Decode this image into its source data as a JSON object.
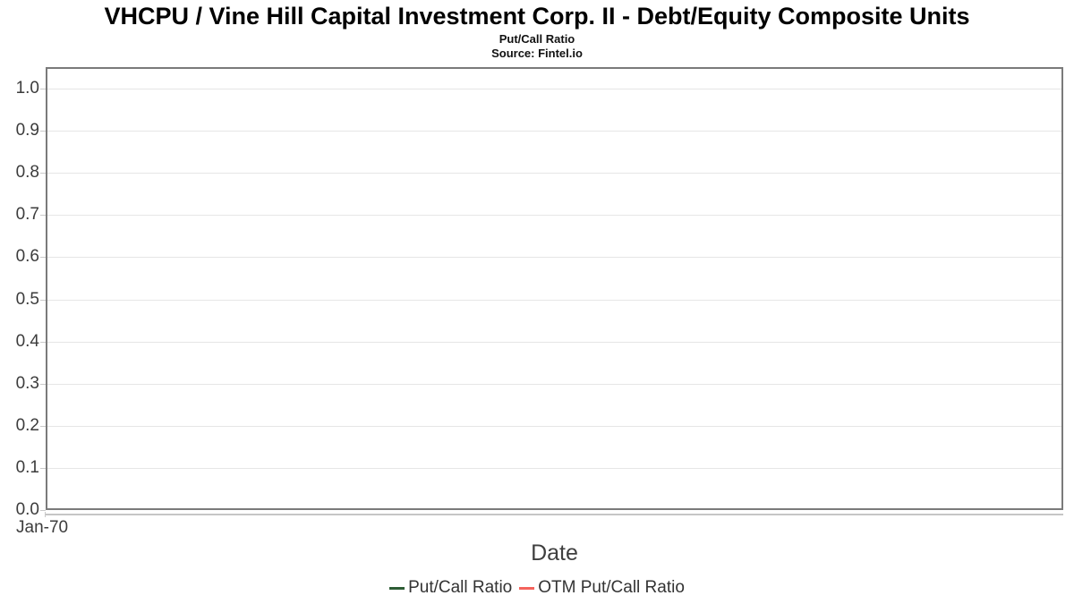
{
  "header": {
    "title": "VHCPU / Vine Hill Capital Investment Corp. II - Debt/Equity Composite Units",
    "subtitle": "Put/Call Ratio",
    "source": "Source: Fintel.io"
  },
  "chart_data": {
    "type": "line",
    "title": "VHCPU / Vine Hill Capital Investment Corp. II - Debt/Equity Composite Units",
    "subtitle": "Put/Call Ratio",
    "source": "Source: Fintel.io",
    "xlabel": "Date",
    "ylabel": "",
    "x_tick_labels": [
      "Jan-70"
    ],
    "y_tick_labels": [
      "0.0",
      "0.1",
      "0.2",
      "0.3",
      "0.4",
      "0.5",
      "0.6",
      "0.7",
      "0.8",
      "0.9",
      "1.0"
    ],
    "ylim": [
      0.0,
      1.05
    ],
    "grid": "horizontal",
    "legend_position": "bottom-center",
    "series": [
      {
        "name": "Put/Call Ratio",
        "color": "#2d5c34",
        "x": [],
        "values": []
      },
      {
        "name": "OTM Put/Call Ratio",
        "color": "#f4635c",
        "x": [],
        "values": []
      }
    ]
  },
  "colors": {
    "background": "#ffffff",
    "plot_border": "#7a7a7a",
    "gridline": "#e6e6e6",
    "tick_mark": "#c9c9c9",
    "secondary_axis_line": "#c6c6c6",
    "title_text": "#000000",
    "tick_label_text": "#3c3c3c",
    "axis_title_text": "#3f3f3f",
    "legend_text": "#333333",
    "series_put_call": "#2d5c34",
    "series_otm_put_call": "#f4635c"
  }
}
